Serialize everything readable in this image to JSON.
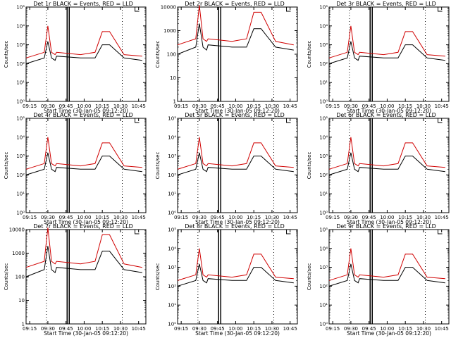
{
  "chart_data": [
    {
      "type": "line",
      "title": "Det 1r BLACK = Events, RED = LLD",
      "xlabel": "Start Time (30-Jan-05 09:12:20)",
      "ylabel": "Counts/sec",
      "y_scale": "log",
      "ylim": [
        1,
        100000
      ],
      "yticks": [
        {
          "v": 1,
          "label": "10⁰"
        },
        {
          "v": 10,
          "label": "10¹"
        },
        {
          "v": 100,
          "label": "10²"
        },
        {
          "v": 1000,
          "label": "10³"
        },
        {
          "v": 10000,
          "label": "10⁴"
        },
        {
          "v": 100000,
          "label": "10⁵"
        }
      ],
      "xticks": [
        "09:15",
        "09:30",
        "09:45",
        "10:00",
        "10:15",
        "10:30",
        "10:45"
      ],
      "series": [
        {
          "color": "#000000"
        },
        {
          "color": "#d00000"
        }
      ],
      "x": [
        9.2,
        9.45,
        9.5,
        9.55,
        9.6,
        9.62,
        9.95,
        10.15,
        10.25,
        10.35,
        10.55,
        10.8
      ],
      "series_values": {
        "black": [
          100,
          200,
          1500,
          200,
          150,
          250,
          200,
          200,
          1000,
          1000,
          200,
          150
        ],
        "red": [
          200,
          400,
          10000,
          400,
          300,
          400,
          300,
          400,
          5000,
          5000,
          300,
          250
        ]
      }
    },
    {
      "type": "line",
      "title": "Det 2r BLACK = Events, RED = LLD",
      "xlabel": "Start Time (30-Jan-05 09:12:20)",
      "ylabel": "Counts/sec",
      "y_scale": "log",
      "ylim": [
        1,
        10000
      ],
      "yticks": [
        {
          "v": 1,
          "label": "1"
        },
        {
          "v": 10,
          "label": "10"
        },
        {
          "v": 100,
          "label": "100"
        },
        {
          "v": 1000,
          "label": "1000"
        },
        {
          "v": 10000,
          "label": "10000"
        }
      ],
      "xticks": [
        "09:15",
        "09:30",
        "09:45",
        "10:00",
        "10:15",
        "10:30",
        "10:45"
      ],
      "series": [
        {
          "color": "#000000"
        },
        {
          "color": "#d00000"
        }
      ],
      "x": [
        9.2,
        9.45,
        9.5,
        9.55,
        9.6,
        9.62,
        9.95,
        10.15,
        10.25,
        10.35,
        10.55,
        10.8
      ],
      "series_values": {
        "black": [
          100,
          200,
          2000,
          200,
          150,
          250,
          200,
          200,
          1200,
          1200,
          200,
          150
        ],
        "red": [
          250,
          450,
          12000,
          450,
          350,
          450,
          350,
          450,
          6000,
          6000,
          350,
          250
        ]
      }
    },
    {
      "type": "line",
      "title": "Det 3r BLACK = Events, RED = LLD",
      "xlabel": "Start Time (30-Jan-05 09:12:20)",
      "ylabel": "Counts/sec",
      "y_scale": "log",
      "ylim": [
        1,
        100000
      ],
      "yticks": [
        {
          "v": 1,
          "label": "10⁰"
        },
        {
          "v": 10,
          "label": "10¹"
        },
        {
          "v": 100,
          "label": "10²"
        },
        {
          "v": 1000,
          "label": "10³"
        },
        {
          "v": 10000,
          "label": "10⁴"
        },
        {
          "v": 100000,
          "label": "10⁵"
        }
      ],
      "xticks": [
        "09:15",
        "09:30",
        "09:45",
        "10:00",
        "10:15",
        "10:30",
        "10:45"
      ],
      "series": [
        {
          "color": "#000000"
        },
        {
          "color": "#d00000"
        }
      ],
      "x": [
        9.2,
        9.45,
        9.5,
        9.55,
        9.6,
        9.62,
        9.95,
        10.15,
        10.25,
        10.35,
        10.55,
        10.8
      ],
      "series_values": {
        "black": [
          100,
          200,
          1500,
          200,
          150,
          250,
          200,
          200,
          1000,
          1000,
          200,
          150
        ],
        "red": [
          200,
          400,
          10000,
          400,
          300,
          400,
          300,
          400,
          5000,
          5000,
          300,
          250
        ]
      }
    },
    {
      "type": "line",
      "title": "Det 4r BLACK = Events, RED = LLD",
      "xlabel": "Start Time (30-Jan-05 09:12:20)",
      "ylabel": "Counts/sec",
      "y_scale": "log",
      "ylim": [
        1,
        100000
      ],
      "yticks": [
        {
          "v": 1,
          "label": "10⁰"
        },
        {
          "v": 10,
          "label": "10¹"
        },
        {
          "v": 100,
          "label": "10²"
        },
        {
          "v": 1000,
          "label": "10³"
        },
        {
          "v": 10000,
          "label": "10⁴"
        },
        {
          "v": 100000,
          "label": "10⁵"
        }
      ],
      "xticks": [
        "09:15",
        "09:30",
        "09:45",
        "10:00",
        "10:15",
        "10:30",
        "10:45"
      ],
      "series": [
        {
          "color": "#000000"
        },
        {
          "color": "#d00000"
        }
      ],
      "x": [
        9.2,
        9.45,
        9.5,
        9.55,
        9.6,
        9.62,
        9.95,
        10.15,
        10.25,
        10.35,
        10.55,
        10.8
      ],
      "series_values": {
        "black": [
          100,
          200,
          1500,
          200,
          150,
          250,
          200,
          200,
          1000,
          1000,
          200,
          150
        ],
        "red": [
          200,
          400,
          10000,
          400,
          300,
          400,
          300,
          400,
          5000,
          5000,
          300,
          250
        ]
      }
    },
    {
      "type": "line",
      "title": "Det 5r BLACK = Events, RED = LLD",
      "xlabel": "Start Time (30-Jan-05 09:12:20)",
      "ylabel": "Counts/sec",
      "y_scale": "log",
      "ylim": [
        1,
        100000
      ],
      "yticks": [
        {
          "v": 1,
          "label": "10⁰"
        },
        {
          "v": 10,
          "label": "10¹"
        },
        {
          "v": 100,
          "label": "10²"
        },
        {
          "v": 1000,
          "label": "10³"
        },
        {
          "v": 10000,
          "label": "10⁴"
        },
        {
          "v": 100000,
          "label": "10⁵"
        }
      ],
      "xticks": [
        "09:15",
        "09:30",
        "09:45",
        "10:00",
        "10:15",
        "10:30",
        "10:45"
      ],
      "series": [
        {
          "color": "#000000"
        },
        {
          "color": "#d00000"
        }
      ],
      "x": [
        9.2,
        9.45,
        9.5,
        9.55,
        9.6,
        9.62,
        9.95,
        10.15,
        10.25,
        10.35,
        10.55,
        10.8
      ],
      "series_values": {
        "black": [
          100,
          200,
          1500,
          200,
          150,
          250,
          200,
          200,
          1000,
          1000,
          200,
          150
        ],
        "red": [
          200,
          400,
          10000,
          400,
          300,
          400,
          300,
          400,
          5000,
          5000,
          300,
          250
        ]
      }
    },
    {
      "type": "line",
      "title": "Det 6r BLACK = Events, RED = LLD",
      "xlabel": "Start Time (30-Jan-05 09:12:20)",
      "ylabel": "Counts/sec",
      "y_scale": "log",
      "ylim": [
        1,
        100000
      ],
      "yticks": [
        {
          "v": 1,
          "label": "10⁰"
        },
        {
          "v": 10,
          "label": "10¹"
        },
        {
          "v": 100,
          "label": "10²"
        },
        {
          "v": 1000,
          "label": "10³"
        },
        {
          "v": 10000,
          "label": "10⁴"
        },
        {
          "v": 100000,
          "label": "10⁵"
        }
      ],
      "xticks": [
        "09:15",
        "09:30",
        "09:45",
        "10:00",
        "10:15",
        "10:30",
        "10:45"
      ],
      "series": [
        {
          "color": "#000000"
        },
        {
          "color": "#d00000"
        }
      ],
      "x": [
        9.2,
        9.45,
        9.5,
        9.55,
        9.6,
        9.62,
        9.95,
        10.15,
        10.25,
        10.35,
        10.55,
        10.8
      ],
      "series_values": {
        "black": [
          100,
          200,
          1500,
          200,
          150,
          250,
          200,
          200,
          1000,
          1000,
          200,
          150
        ],
        "red": [
          200,
          400,
          10000,
          400,
          300,
          400,
          300,
          400,
          5000,
          5000,
          300,
          250
        ]
      }
    },
    {
      "type": "line",
      "title": "Det 7r BLACK = Events, RED = LLD",
      "xlabel": "Start Time (30-Jan-05 09:12:20)",
      "ylabel": "Counts/sec",
      "y_scale": "log",
      "ylim": [
        1,
        10000
      ],
      "yticks": [
        {
          "v": 1,
          "label": "1"
        },
        {
          "v": 10,
          "label": "10"
        },
        {
          "v": 100,
          "label": "100"
        },
        {
          "v": 1000,
          "label": "1000"
        },
        {
          "v": 10000,
          "label": "10000"
        }
      ],
      "xticks": [
        "09:15",
        "09:30",
        "09:45",
        "10:00",
        "10:15",
        "10:30",
        "10:45"
      ],
      "series": [
        {
          "color": "#000000"
        },
        {
          "color": "#d00000"
        }
      ],
      "x": [
        9.2,
        9.45,
        9.5,
        9.55,
        9.6,
        9.62,
        9.95,
        10.15,
        10.25,
        10.35,
        10.55,
        10.8
      ],
      "series_values": {
        "black": [
          100,
          200,
          2000,
          200,
          150,
          250,
          200,
          200,
          1200,
          1200,
          200,
          150
        ],
        "red": [
          250,
          450,
          12000,
          450,
          350,
          450,
          350,
          450,
          6000,
          6000,
          350,
          250
        ]
      }
    },
    {
      "type": "line",
      "title": "Det 8r BLACK = Events, RED = LLD",
      "xlabel": "Start Time (30-Jan-05 09:12:20)",
      "ylabel": "Counts/sec",
      "y_scale": "log",
      "ylim": [
        1,
        100000
      ],
      "yticks": [
        {
          "v": 1,
          "label": "10⁰"
        },
        {
          "v": 10,
          "label": "10¹"
        },
        {
          "v": 100,
          "label": "10²"
        },
        {
          "v": 1000,
          "label": "10³"
        },
        {
          "v": 10000,
          "label": "10⁴"
        },
        {
          "v": 100000,
          "label": "10⁵"
        }
      ],
      "xticks": [
        "09:15",
        "09:30",
        "09:45",
        "10:00",
        "10:15",
        "10:30",
        "10:45"
      ],
      "series": [
        {
          "color": "#000000"
        },
        {
          "color": "#d00000"
        }
      ],
      "x": [
        9.2,
        9.45,
        9.5,
        9.55,
        9.6,
        9.62,
        9.95,
        10.15,
        10.25,
        10.35,
        10.55,
        10.8
      ],
      "series_values": {
        "black": [
          100,
          200,
          1500,
          200,
          150,
          250,
          200,
          200,
          1000,
          1000,
          200,
          150
        ],
        "red": [
          200,
          400,
          10000,
          400,
          300,
          400,
          300,
          400,
          5000,
          5000,
          300,
          250
        ]
      }
    },
    {
      "type": "line",
      "title": "Det 9r BLACK = Events, RED = LLD",
      "xlabel": "Start Time (30-Jan-05 09:12:20)",
      "ylabel": "Counts/sec",
      "y_scale": "log",
      "ylim": [
        1,
        100000
      ],
      "yticks": [
        {
          "v": 1,
          "label": "10⁰"
        },
        {
          "v": 10,
          "label": "10¹"
        },
        {
          "v": 100,
          "label": "10²"
        },
        {
          "v": 1000,
          "label": "10³"
        },
        {
          "v": 10000,
          "label": "10⁴"
        },
        {
          "v": 100000,
          "label": "10⁵"
        }
      ],
      "xticks": [
        "09:15",
        "09:30",
        "09:45",
        "10:00",
        "10:15",
        "10:30",
        "10:45"
      ],
      "series": [
        {
          "color": "#000000"
        },
        {
          "color": "#d00000"
        }
      ],
      "x": [
        9.2,
        9.45,
        9.5,
        9.55,
        9.6,
        9.62,
        9.95,
        10.15,
        10.25,
        10.35,
        10.55,
        10.8
      ],
      "series_values": {
        "black": [
          100,
          200,
          1500,
          200,
          150,
          250,
          200,
          200,
          1000,
          1000,
          200,
          150
        ],
        "red": [
          200,
          400,
          10000,
          400,
          300,
          400,
          300,
          400,
          5000,
          5000,
          300,
          250
        ]
      }
    }
  ]
}
